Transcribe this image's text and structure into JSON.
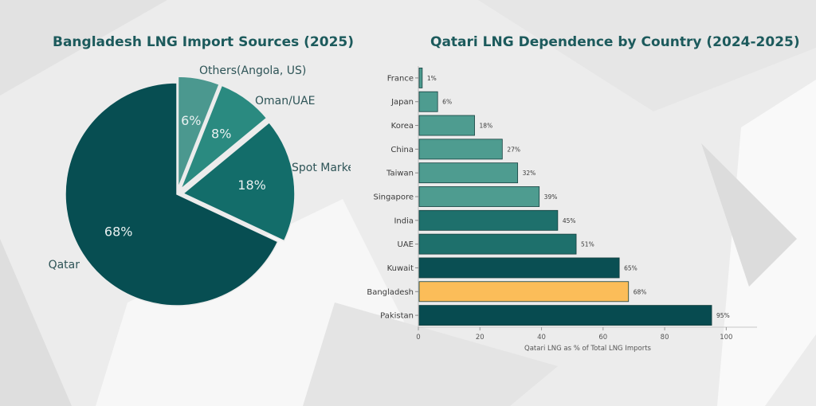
{
  "chart_data": [
    {
      "type": "pie",
      "title": "Bangladesh LNG Import Sources (2025)",
      "slices": [
        {
          "label": "Qatar",
          "value": 68,
          "value_label": "68%",
          "color": "#074e52",
          "exploded": false
        },
        {
          "label": "Spot Markets",
          "value": 18,
          "value_label": "18%",
          "color": "#136d6a",
          "exploded": true
        },
        {
          "label": "Oman/UAE",
          "value": 8,
          "value_label": "8%",
          "color": "#2a8a80",
          "exploded": true
        },
        {
          "label": "Others(Angola, US)",
          "value": 6,
          "value_label": "6%",
          "color": "#4b988f",
          "exploded": true
        }
      ]
    },
    {
      "type": "bar",
      "orientation": "horizontal",
      "title": "Qatari LNG Dependence by Country (2024-2025)",
      "xlabel": "Qatari LNG as % of Total LNG Imports",
      "ylabel": "",
      "xlim": [
        0,
        110
      ],
      "xticks": [
        0,
        20,
        40,
        60,
        80,
        100
      ],
      "categories": [
        "France",
        "Japan",
        "Korea",
        "China",
        "Taiwan",
        "Singapore",
        "India",
        "UAE",
        "Kuwait",
        "Bangladesh",
        "Pakistan"
      ],
      "values": [
        1,
        6,
        18,
        27,
        32,
        39,
        45,
        51,
        65,
        68,
        95
      ],
      "value_labels": [
        "1%",
        "6%",
        "18%",
        "27%",
        "32%",
        "39%",
        "45%",
        "51%",
        "65%",
        "68%",
        "95%"
      ],
      "colors": [
        "#4e9c90",
        "#4e9c90",
        "#4e9c90",
        "#4e9c90",
        "#4e9c90",
        "#4e9c90",
        "#1e706c",
        "#1e706c",
        "#0a4f53",
        "#fbbd59",
        "#074b50"
      ],
      "grid": false
    }
  ]
}
